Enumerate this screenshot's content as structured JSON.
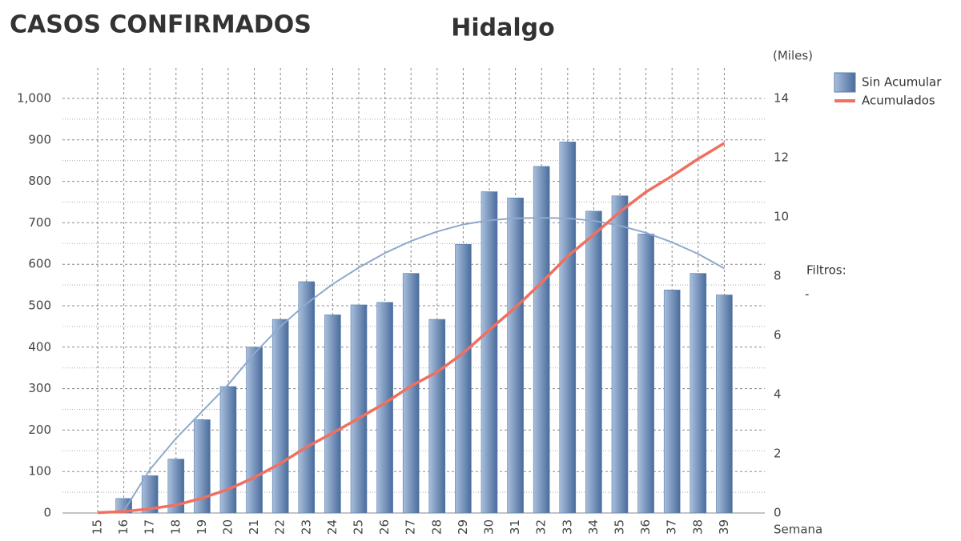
{
  "chart_data": {
    "type": "bar_line",
    "header": "CASOS CONFIRMADOS",
    "title": "Hidalgo",
    "y2_unit": "(Miles)",
    "xlabel": "Semana",
    "filters_label": "Filtros:",
    "filters_value": "-",
    "categories": [
      "15",
      "16",
      "17",
      "18",
      "19",
      "20",
      "21",
      "22",
      "23",
      "24",
      "25",
      "26",
      "27",
      "28",
      "29",
      "30",
      "31",
      "32",
      "33",
      "34",
      "35",
      "36",
      "37",
      "38",
      "39"
    ],
    "series": [
      {
        "name": "Sin Acumular",
        "color": "#5a7fae",
        "type": "bar",
        "values": [
          0,
          35,
          90,
          130,
          225,
          305,
          400,
          467,
          558,
          478,
          502,
          508,
          578,
          467,
          648,
          775,
          760,
          836,
          895,
          728,
          765,
          673,
          538,
          578,
          526
        ]
      },
      {
        "name": "Acumulados",
        "color": "#f07060",
        "type": "line",
        "axis": "y2",
        "values": [
          0.01,
          0.05,
          0.14,
          0.27,
          0.5,
          0.8,
          1.2,
          1.67,
          2.23,
          2.7,
          3.2,
          3.71,
          4.29,
          4.76,
          5.4,
          6.18,
          6.94,
          7.78,
          8.67,
          9.4,
          10.17,
          10.84,
          11.38,
          11.96,
          12.49
        ]
      },
      {
        "color": "#8fa9cc",
        "type": "trend",
        "values": [
          null,
          5,
          105,
          180,
          245,
          310,
          385,
          450,
          505,
          552,
          592,
          627,
          656,
          679,
          696,
          706,
          711,
          712,
          711,
          705,
          693,
          676,
          653,
          625,
          590
        ]
      }
    ],
    "ylim": [
      0,
      1000
    ],
    "yticks": [
      0,
      100,
      200,
      300,
      400,
      500,
      600,
      700,
      800,
      900,
      {
        "value": 1000,
        "label": "1,000"
      }
    ],
    "y2lim": [
      0,
      14
    ],
    "y2ticks": [
      0,
      2,
      4,
      6,
      8,
      10,
      12,
      14
    ],
    "grid": true,
    "minor_grid": true,
    "legend": "upper right"
  }
}
